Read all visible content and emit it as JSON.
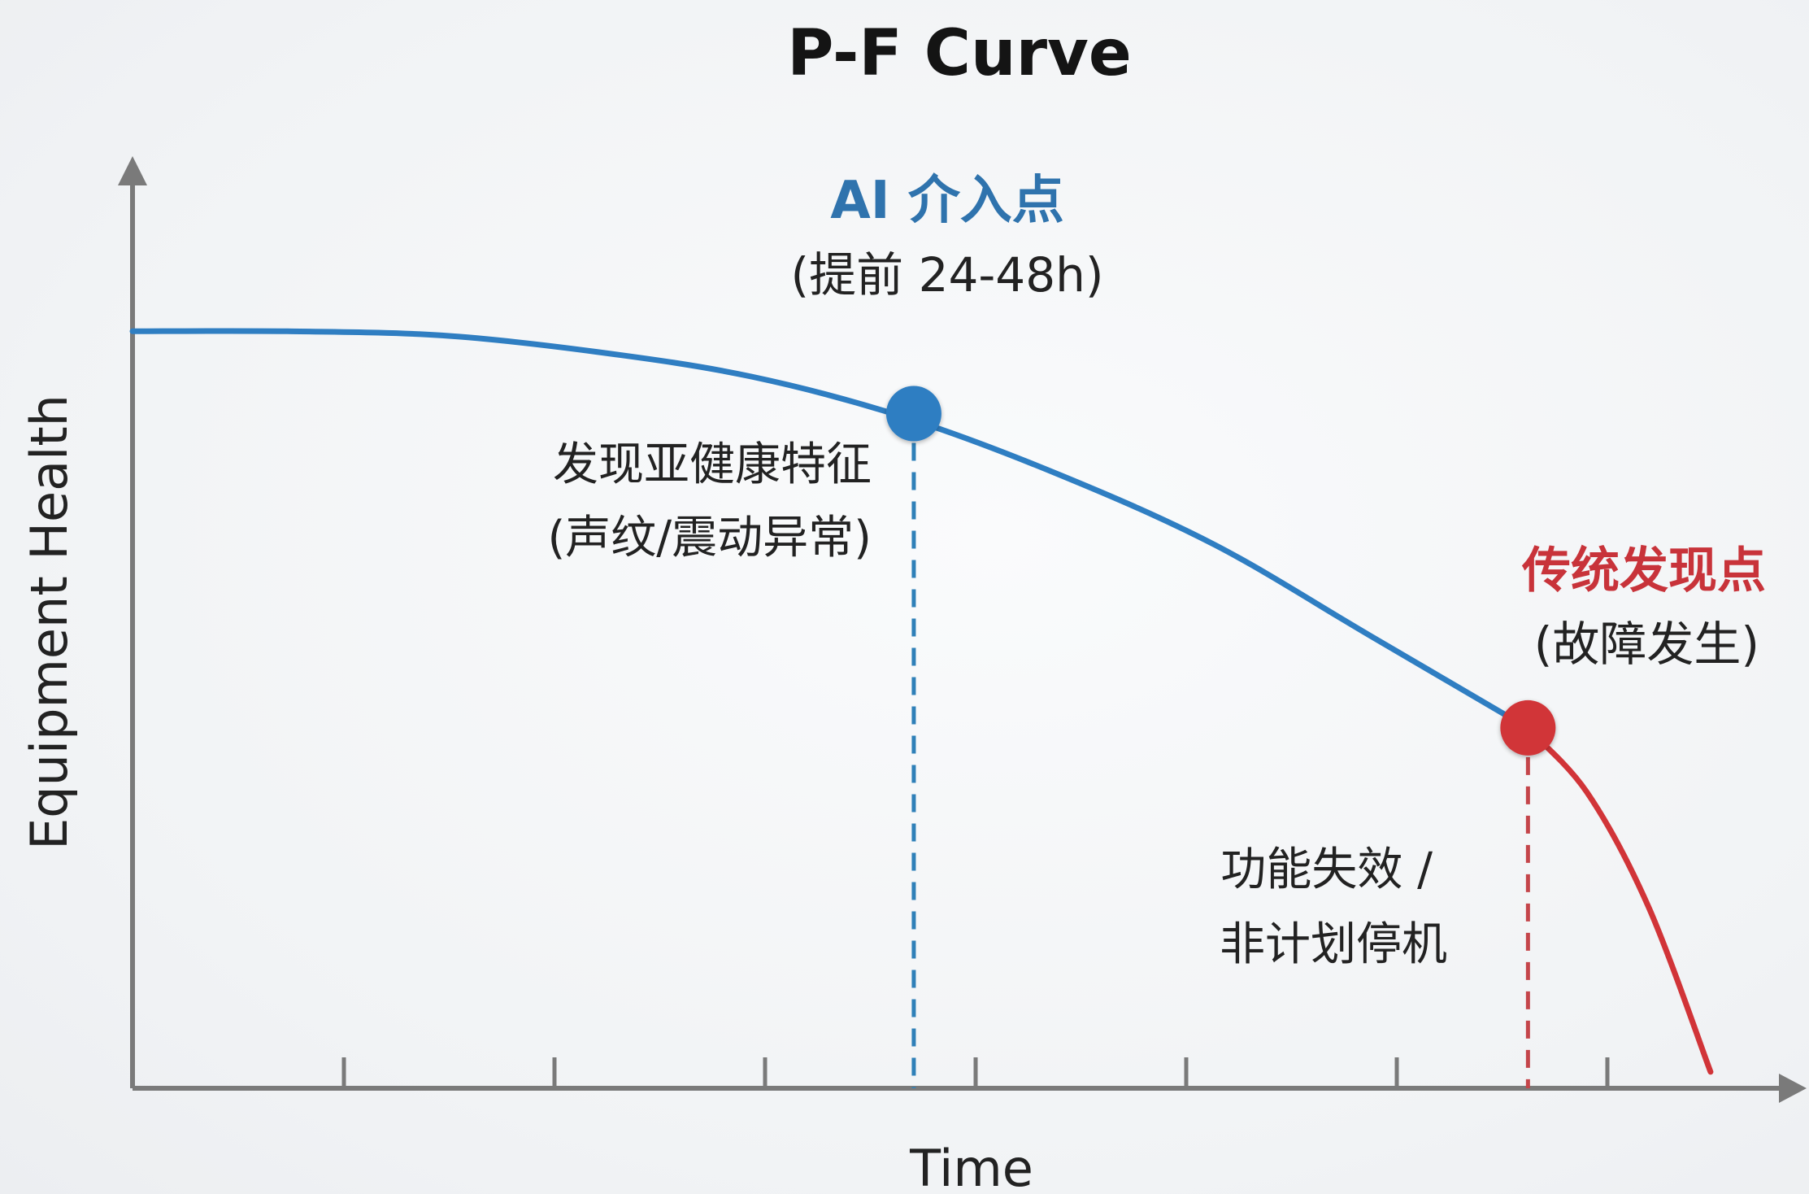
{
  "chart_data": {
    "type": "line",
    "title": "P-F Curve",
    "xlabel": "Time",
    "ylabel": "Equipment Health",
    "x_ticks": 7,
    "grid": false,
    "series": [
      {
        "color": "#2f7ec2",
        "points": [
          [
            0,
            0.92
          ],
          [
            1,
            0.92
          ],
          [
            2,
            0.915
          ],
          [
            3,
            0.895
          ],
          [
            4,
            0.865
          ],
          [
            5,
            0.815
          ],
          [
            6,
            0.745
          ],
          [
            7,
            0.66
          ],
          [
            8,
            0.55
          ],
          [
            9,
            0.44
          ]
        ]
      },
      {
        "color": "#d13438",
        "points": [
          [
            9,
            0.44
          ],
          [
            9.4,
            0.36
          ],
          [
            9.8,
            0.22
          ],
          [
            10.2,
            0.02
          ]
        ]
      }
    ],
    "xlim": [
      0,
      10.6
    ],
    "ylim": [
      0,
      1.12
    ],
    "annotations": [
      {
        "id": "p_point",
        "x": 5.05,
        "y": 0.82,
        "color": "#2f7ec2",
        "head": "AI 介入点",
        "sub": "(提前 24-48h)",
        "body": [
          "发现亚健康特征",
          "(声纹/震动异常)"
        ]
      },
      {
        "id": "f_point",
        "x": 9.02,
        "y": 0.438,
        "color": "#d13438",
        "head": "传统发现点",
        "sub": "(故障发生)",
        "body": [
          "功能失效 /",
          "非计划停机"
        ]
      }
    ]
  },
  "colors": {
    "axis": "#7a7a7a",
    "p_dash": "#2f80b8",
    "f_dash": "#c4454a"
  }
}
